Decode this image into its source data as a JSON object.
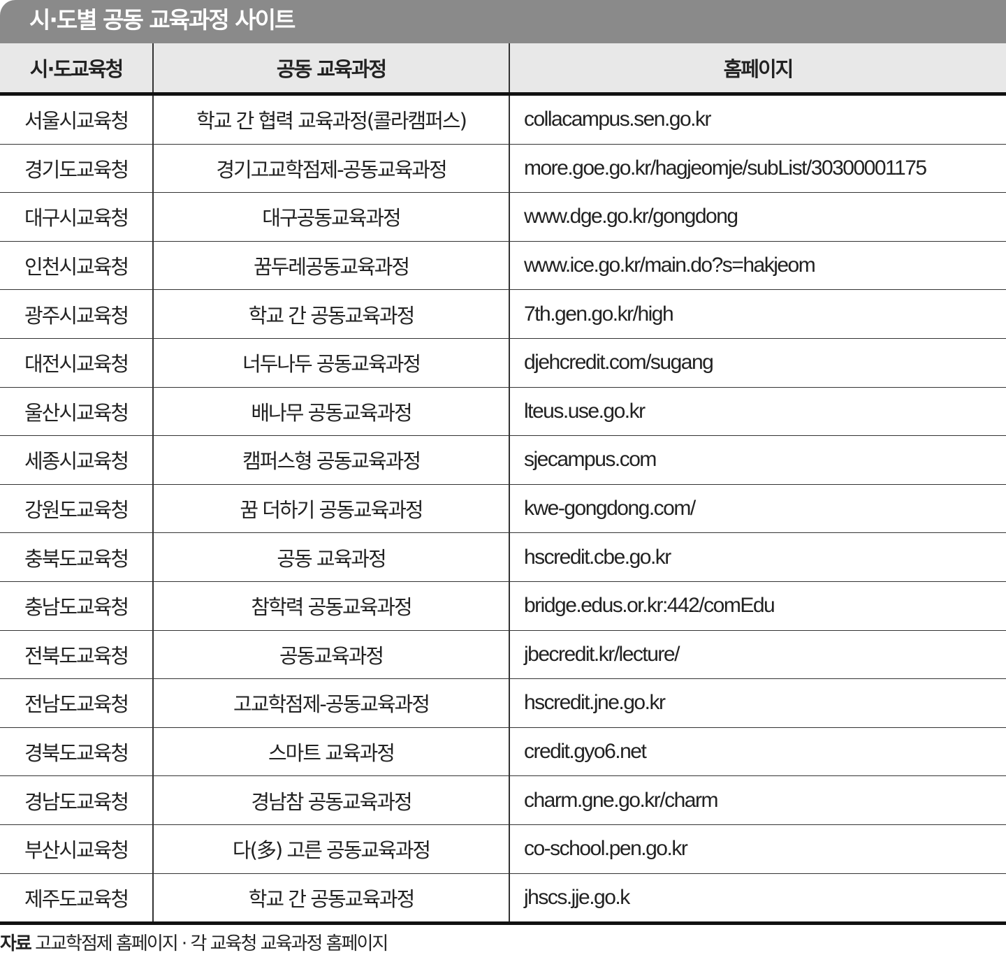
{
  "title": "시·도별 공동 교육과정 사이트",
  "columns": [
    "시·도교육청",
    "공동 교육과정",
    "홈페이지"
  ],
  "rows": [
    [
      "서울시교육청",
      "학교 간 협력 교육과정(콜라캠퍼스)",
      "collacampus.sen.go.kr"
    ],
    [
      "경기도교육청",
      "경기고교학점제-공동교육과정",
      "more.goe.go.kr/hagjeomje/subList/30300001175"
    ],
    [
      "대구시교육청",
      "대구공동교육과정",
      "www.dge.go.kr/gongdong"
    ],
    [
      "인천시교육청",
      "꿈두레공동교육과정",
      "www.ice.go.kr/main.do?s=hakjeom"
    ],
    [
      "광주시교육청",
      "학교 간 공동교육과정",
      "7th.gen.go.kr/high"
    ],
    [
      "대전시교육청",
      "너두나두 공동교육과정",
      "djehcredit.com/sugang"
    ],
    [
      "울산시교육청",
      "배나무 공동교육과정",
      "lteus.use.go.kr"
    ],
    [
      "세종시교육청",
      "캠퍼스형 공동교육과정",
      "sjecampus.com"
    ],
    [
      "강원도교육청",
      "꿈 더하기 공동교육과정",
      "kwe-gongdong.com/"
    ],
    [
      "충북도교육청",
      "공동 교육과정",
      "hscredit.cbe.go.kr"
    ],
    [
      "충남도교육청",
      "참학력 공동교육과정",
      "bridge.edus.or.kr:442/comEdu"
    ],
    [
      "전북도교육청",
      "공동교육과정",
      "jbecredit.kr/lecture/"
    ],
    [
      "전남도교육청",
      "고교학점제-공동교육과정",
      "hscredit.jne.go.kr"
    ],
    [
      "경북도교육청",
      "스마트 교육과정",
      "credit.gyo6.net"
    ],
    [
      "경남도교육청",
      "경남참 공동교육과정",
      "charm.gne.go.kr/charm"
    ],
    [
      "부산시교육청",
      "다(多) 고른 공동교육과정",
      "co-school.pen.go.kr"
    ],
    [
      "제주도교육청",
      "학교 간 공동교육과정",
      "jhscs.jje.go.k"
    ]
  ],
  "footer": {
    "label": "자료",
    "text": "고교학점제 홈페이지 · 각 교육청 교육과정 홈페이지"
  },
  "colors": {
    "title_bg": "#8a8a8a",
    "header_bg": "#e8e8e8"
  }
}
